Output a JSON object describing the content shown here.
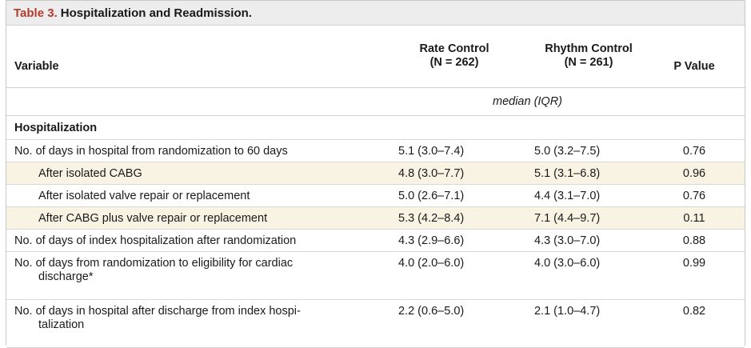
{
  "title": {
    "number": "Table 3.",
    "text": "Hospitalization and Readmission."
  },
  "columns": {
    "variable": "Variable",
    "rate_line1": "Rate Control",
    "rate_line2": "(N = 262)",
    "rhythm_line1": "Rhythm Control",
    "rhythm_line2": "(N = 261)",
    "p": "P Value"
  },
  "units": "median (IQR)",
  "section": "Hospitalization",
  "rows": [
    {
      "label": "No. of days in hospital from randomization to 60 days",
      "label_cont": "",
      "rate": "5.1 (3.0–7.4)",
      "rhythm": "5.0 (3.2–7.5)",
      "p": "0.76"
    },
    {
      "label": "After isolated CABG",
      "label_cont": "",
      "rate": "4.8 (3.0–7.7)",
      "rhythm": "5.1 (3.1–6.8)",
      "p": "0.96"
    },
    {
      "label": "After isolated valve repair or replacement",
      "label_cont": "",
      "rate": "5.0 (2.6–7.1)",
      "rhythm": "4.4 (3.1–7.0)",
      "p": "0.76"
    },
    {
      "label": "After CABG plus valve repair or replacement",
      "label_cont": "",
      "rate": "5.3 (4.2–8.4)",
      "rhythm": "7.1 (4.4–9.7)",
      "p": "0.11"
    },
    {
      "label": "No. of days of index hospitalization after randomization",
      "label_cont": "",
      "rate": "4.3 (2.9–6.6)",
      "rhythm": "4.3 (3.0–7.0)",
      "p": "0.88"
    },
    {
      "label": "No. of days from randomization to eligibility for cardiac",
      "label_cont": "discharge*",
      "rate": "4.0 (2.0–6.0)",
      "rhythm": "4.0 (3.0–6.0)",
      "p": "0.99"
    },
    {
      "label": "No. of days in hospital after discharge from index hospi-",
      "label_cont": "talization",
      "rate": "2.2 (0.6–5.0)",
      "rhythm": "2.1 (1.0–4.7)",
      "p": "0.82"
    }
  ]
}
